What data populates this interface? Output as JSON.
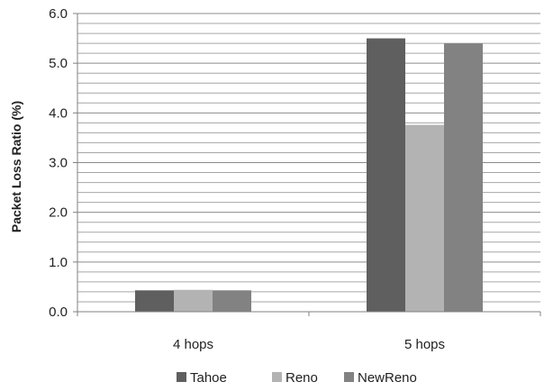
{
  "chart_data": {
    "type": "bar",
    "title": "",
    "xlabel": "",
    "ylabel": "Packet Loss Ratio (%)",
    "categories": [
      "4 hops",
      "5 hops"
    ],
    "series": [
      {
        "name": "Tahoe",
        "values": [
          0.43,
          5.5
        ],
        "color": "#5f5f5f"
      },
      {
        "name": "Reno",
        "values": [
          0.44,
          3.76
        ],
        "color": "#b3b3b3"
      },
      {
        "name": "NewReno",
        "values": [
          0.43,
          5.4
        ],
        "color": "#828282"
      }
    ],
    "ylim": [
      0,
      6
    ],
    "yticks": [
      "0.0",
      "1.0",
      "2.0",
      "3.0",
      "4.0",
      "5.0",
      "6.0"
    ],
    "grid": true,
    "legend_position": "bottom"
  }
}
